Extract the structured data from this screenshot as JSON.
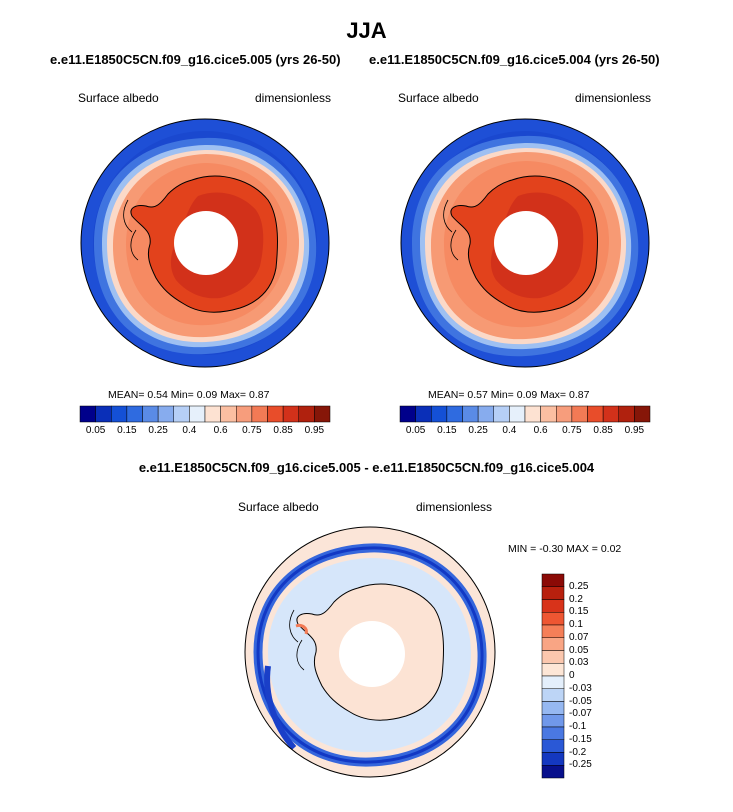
{
  "title": "JJA",
  "chart_data": [
    {
      "type": "heatmap",
      "title": "e.e11.E1850C5CN.f09_g16.cice5.005 (yrs 26-50)",
      "left_label": "Surface albedo",
      "right_label": "dimensionless",
      "stats": {
        "mean_label": "MEAN=",
        "mean": "0.54",
        "min_label": "Min=",
        "min": "0.09",
        "max_label": "Max=",
        "max": "0.87"
      },
      "colorbar": {
        "colors": [
          "#00008b",
          "#0a2fb8",
          "#1450d6",
          "#2f6be0",
          "#5a8be6",
          "#87acee",
          "#b6cff6",
          "#e6f0fb",
          "#fde2d2",
          "#fbbfa2",
          "#f79d7c",
          "#f27a55",
          "#e84d2a",
          "#d2311a",
          "#b0210e",
          "#861608"
        ],
        "ticks": [
          "0.05",
          "0.15",
          "0.25",
          "0.4",
          "0.6",
          "0.75",
          "0.85",
          "0.95"
        ]
      }
    },
    {
      "type": "heatmap",
      "title": "e.e11.E1850C5CN.f09_g16.cice5.004 (yrs 26-50)",
      "left_label": "Surface albedo",
      "right_label": "dimensionless",
      "stats": {
        "mean_label": "MEAN=",
        "mean": "0.57",
        "min_label": "Min=",
        "min": "0.09",
        "max_label": "Max=",
        "max": "0.87"
      },
      "colorbar": {
        "colors": [
          "#00008b",
          "#0a2fb8",
          "#1450d6",
          "#2f6be0",
          "#5a8be6",
          "#87acee",
          "#b6cff6",
          "#e6f0fb",
          "#fde2d2",
          "#fbbfa2",
          "#f79d7c",
          "#f27a55",
          "#e84d2a",
          "#d2311a",
          "#b0210e",
          "#861608"
        ],
        "ticks": [
          "0.05",
          "0.15",
          "0.25",
          "0.4",
          "0.6",
          "0.75",
          "0.85",
          "0.95"
        ]
      }
    },
    {
      "type": "heatmap",
      "title": "e.e11.E1850C5CN.f09_g16.cice5.005 - e.e11.E1850C5CN.f09_g16.cice5.004",
      "left_label": "Surface albedo",
      "right_label": "dimensionless",
      "stats": {
        "min_label": "MIN =",
        "min": "-0.30",
        "max_label": "MAX =",
        "max": "0.02"
      },
      "colorbar": {
        "colors": [
          "#8b0a06",
          "#b8200e",
          "#d8331a",
          "#ee5632",
          "#f57f58",
          "#f9a584",
          "#fbc7ae",
          "#fde6d6",
          "#e4effb",
          "#bdd5f6",
          "#96b8f1",
          "#7098ea",
          "#4a78e2",
          "#2a58d6",
          "#1438c0",
          "#08108c"
        ],
        "ticks": [
          "0.25",
          "0.2",
          "0.15",
          "0.1",
          "0.07",
          "0.05",
          "0.03",
          "0",
          "-0.03",
          "-0.05",
          "-0.07",
          "-0.1",
          "-0.15",
          "-0.2",
          "-0.25"
        ]
      }
    }
  ]
}
